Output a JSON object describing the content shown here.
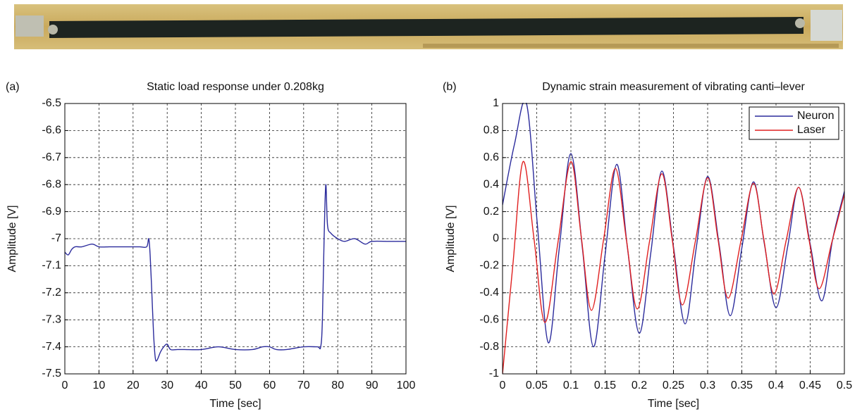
{
  "chart_data": [
    {
      "type": "line",
      "label": "(a)",
      "title": "Static load response under 0.208kg",
      "x_label": "Time [sec]",
      "y_label": "Amplitude [V]",
      "x": [
        0,
        1,
        2,
        3,
        5,
        8,
        10,
        13,
        15,
        18,
        20,
        22,
        24,
        24.6,
        25,
        25.5,
        26,
        26.5,
        27,
        28,
        29,
        30,
        31,
        33,
        35,
        40,
        45,
        50,
        55,
        58,
        60,
        62,
        65,
        70,
        74,
        75,
        75.5,
        76,
        76.5,
        77,
        78,
        80,
        82,
        85,
        88,
        90,
        95,
        100
      ],
      "values": [
        -7.05,
        -7.06,
        -7.04,
        -7.03,
        -7.03,
        -7.02,
        -7.03,
        -7.03,
        -7.03,
        -7.03,
        -7.03,
        -7.03,
        -7.03,
        -7.0,
        -7.06,
        -7.2,
        -7.35,
        -7.44,
        -7.45,
        -7.42,
        -7.4,
        -7.39,
        -7.41,
        -7.41,
        -7.41,
        -7.41,
        -7.4,
        -7.41,
        -7.41,
        -7.4,
        -7.4,
        -7.41,
        -7.41,
        -7.4,
        -7.4,
        -7.4,
        -7.3,
        -7.0,
        -6.8,
        -6.95,
        -6.98,
        -7.0,
        -7.01,
        -7.0,
        -7.02,
        -7.01,
        -7.01,
        -7.01
      ],
      "color": "#2b2b9c",
      "xlim": [
        0,
        100
      ],
      "xticks": [
        0,
        10,
        20,
        30,
        40,
        50,
        60,
        70,
        80,
        90,
        100
      ],
      "ylim": [
        -7.5,
        -6.5
      ],
      "yticks": [
        -7.5,
        -7.4,
        -7.3,
        -7.2,
        -7.1,
        -7,
        -6.9,
        -6.8,
        -6.7,
        -6.6,
        -6.5
      ],
      "grid": true
    },
    {
      "type": "line",
      "label": "(b)",
      "title": "Dynamic strain measurement of vibrating canti–lever",
      "x_label": "Time [sec]",
      "y_label": "Amplitude [V]",
      "series": [
        {
          "name": "Neuron",
          "color": "#2b2b9c",
          "x": [
            0,
            0.0175,
            0.035,
            0.051,
            0.067,
            0.083,
            0.1,
            0.117,
            0.133,
            0.15,
            0.167,
            0.183,
            0.2,
            0.217,
            0.233,
            0.25,
            0.267,
            0.283,
            0.3,
            0.317,
            0.333,
            0.35,
            0.367,
            0.383,
            0.4,
            0.417,
            0.433,
            0.45,
            0.467,
            0.483,
            0.5
          ],
          "values": [
            0.25,
            0.7,
            1.0,
            0.1,
            -0.77,
            -0.07,
            0.63,
            -0.08,
            -0.8,
            -0.12,
            0.55,
            -0.08,
            -0.7,
            -0.1,
            0.5,
            -0.06,
            -0.63,
            -0.08,
            0.46,
            -0.05,
            -0.57,
            -0.07,
            0.42,
            -0.04,
            -0.51,
            -0.06,
            0.38,
            -0.04,
            -0.46,
            0.0,
            0.35
          ]
        },
        {
          "name": "Laser",
          "color": "#e02020",
          "x": [
            0,
            0.015,
            0.03,
            0.046,
            0.062,
            0.081,
            0.1,
            0.115,
            0.13,
            0.148,
            0.165,
            0.181,
            0.197,
            0.215,
            0.233,
            0.248,
            0.263,
            0.282,
            0.3,
            0.315,
            0.33,
            0.349,
            0.367,
            0.382,
            0.397,
            0.415,
            0.433,
            0.448,
            0.463,
            0.482,
            0.5
          ],
          "values": [
            -1,
            -0.2,
            0.57,
            0.0,
            -0.62,
            -0.03,
            0.57,
            0.02,
            -0.53,
            0.0,
            0.52,
            0.0,
            -0.52,
            -0.02,
            0.48,
            0.0,
            -0.49,
            -0.02,
            0.45,
            0.0,
            -0.44,
            -0.01,
            0.41,
            0.0,
            -0.41,
            -0.01,
            0.38,
            0.0,
            -0.37,
            -0.02,
            0.33
          ]
        }
      ],
      "xlim": [
        0,
        0.5
      ],
      "xticks": [
        0,
        0.05,
        0.1,
        0.15,
        0.2,
        0.25,
        0.3,
        0.35,
        0.4,
        0.45,
        0.5
      ],
      "ylim": [
        -1,
        1
      ],
      "yticks": [
        -1,
        -0.8,
        -0.6,
        -0.4,
        -0.2,
        0,
        0.2,
        0.4,
        0.6,
        0.8,
        1
      ],
      "grid": true,
      "legend": "upper-right"
    }
  ]
}
